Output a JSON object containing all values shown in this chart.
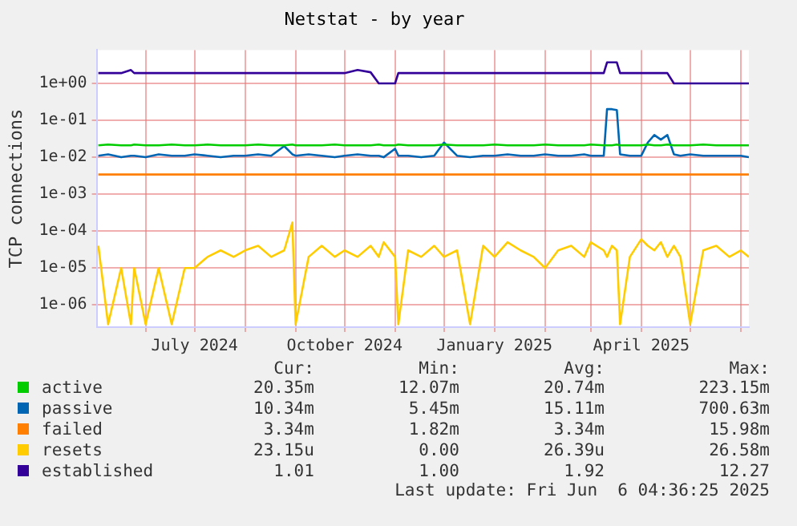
{
  "chart_data": {
    "type": "line",
    "title": "Netstat - by year",
    "ylabel": "TCP connections",
    "log": "y",
    "grid": true,
    "legend": "bottom",
    "marker": "none",
    "line_style": "solid",
    "x": [
      "2024-05-03",
      "2024-05-09",
      "2024-05-17",
      "2024-05-23",
      "2024-05-25",
      "2024-06-01",
      "2024-06-09",
      "2024-06-17",
      "2024-06-25",
      "2024-07-01",
      "2024-07-09",
      "2024-07-17",
      "2024-07-25",
      "2024-08-01",
      "2024-08-09",
      "2024-08-17",
      "2024-08-25",
      "2024-08-30",
      "2024-09-01",
      "2024-09-09",
      "2024-09-17",
      "2024-09-25",
      "2024-10-01",
      "2024-10-09",
      "2024-10-17",
      "2024-10-22",
      "2024-10-25",
      "2024-11-01",
      "2024-11-03",
      "2024-11-09",
      "2024-11-17",
      "2024-11-25",
      "2024-12-01",
      "2024-12-09",
      "2024-12-17",
      "2024-12-25",
      "2025-01-01",
      "2025-01-09",
      "2025-01-17",
      "2025-01-25",
      "2025-02-01",
      "2025-02-09",
      "2025-02-17",
      "2025-02-25",
      "2025-03-01",
      "2025-03-09",
      "2025-03-11",
      "2025-03-14",
      "2025-03-17",
      "2025-03-19",
      "2025-03-25",
      "2025-04-01",
      "2025-04-05",
      "2025-04-09",
      "2025-04-13",
      "2025-04-17",
      "2025-04-21",
      "2025-04-25",
      "2025-05-01",
      "2025-05-09",
      "2025-05-17",
      "2025-05-25",
      "2025-06-01",
      "2025-06-06"
    ],
    "xlim": [
      "2024-05-02",
      "2025-06-06"
    ],
    "xticks": [
      {
        "value": "2024-06-01",
        "label": null
      },
      {
        "value": "2024-07-01",
        "label": "July 2024"
      },
      {
        "value": "2024-08-01",
        "label": null
      },
      {
        "value": "2024-09-01",
        "label": null
      },
      {
        "value": "2024-10-01",
        "label": "October 2024"
      },
      {
        "value": "2024-11-01",
        "label": null
      },
      {
        "value": "2024-12-01",
        "label": null
      },
      {
        "value": "2025-01-01",
        "label": "January 2025"
      },
      {
        "value": "2025-02-01",
        "label": null
      },
      {
        "value": "2025-03-01",
        "label": null
      },
      {
        "value": "2025-04-01",
        "label": "April 2025"
      },
      {
        "value": "2025-05-01",
        "label": null
      },
      {
        "value": "2025-06-01",
        "label": null
      }
    ],
    "ylim": [
      2.5e-07,
      8
    ],
    "yticks": [
      {
        "value": 1e-06,
        "label": "1e-06"
      },
      {
        "value": 1e-05,
        "label": "1e-05"
      },
      {
        "value": 0.0001,
        "label": "1e-04"
      },
      {
        "value": 0.001,
        "label": "1e-03"
      },
      {
        "value": 0.01,
        "label": "1e-02"
      },
      {
        "value": 0.1,
        "label": "1e-01"
      },
      {
        "value": 1,
        "label": "1e+00"
      }
    ],
    "series": [
      {
        "name": "active",
        "color": "#00cc00",
        "values": [
          0.021,
          0.022,
          0.021,
          0.021,
          0.022,
          0.021,
          0.021,
          0.022,
          0.021,
          0.021,
          0.022,
          0.021,
          0.021,
          0.021,
          0.022,
          0.021,
          0.021,
          0.022,
          0.021,
          0.021,
          0.021,
          0.022,
          0.021,
          0.021,
          0.021,
          0.022,
          0.021,
          0.021,
          0.022,
          0.021,
          0.021,
          0.021,
          0.022,
          0.021,
          0.021,
          0.021,
          0.022,
          0.021,
          0.021,
          0.021,
          0.022,
          0.021,
          0.021,
          0.021,
          0.022,
          0.021,
          0.021,
          0.021,
          0.022,
          0.021,
          0.021,
          0.021,
          0.022,
          0.021,
          0.021,
          0.022,
          0.021,
          0.021,
          0.021,
          0.022,
          0.021,
          0.021,
          0.021,
          0.021
        ]
      },
      {
        "name": "passive",
        "color": "#0066b3",
        "values": [
          0.011,
          0.012,
          0.01,
          0.011,
          0.011,
          0.01,
          0.012,
          0.011,
          0.011,
          0.012,
          0.011,
          0.01,
          0.011,
          0.011,
          0.012,
          0.011,
          0.02,
          0.012,
          0.011,
          0.012,
          0.011,
          0.01,
          0.011,
          0.012,
          0.011,
          0.011,
          0.01,
          0.017,
          0.011,
          0.011,
          0.01,
          0.011,
          0.025,
          0.011,
          0.01,
          0.011,
          0.011,
          0.012,
          0.011,
          0.011,
          0.012,
          0.011,
          0.011,
          0.012,
          0.011,
          0.011,
          0.2,
          0.2,
          0.19,
          0.012,
          0.011,
          0.011,
          0.025,
          0.04,
          0.03,
          0.04,
          0.012,
          0.011,
          0.012,
          0.011,
          0.011,
          0.011,
          0.011,
          0.01
        ]
      },
      {
        "name": "failed",
        "color": "#ff8000",
        "values": [
          0.0034,
          0.0034,
          0.0034,
          0.0034,
          0.0034,
          0.0034,
          0.0034,
          0.0034,
          0.0034,
          0.0034,
          0.0034,
          0.0034,
          0.0034,
          0.0034,
          0.0034,
          0.0034,
          0.0034,
          0.0034,
          0.0034,
          0.0034,
          0.0034,
          0.0034,
          0.0034,
          0.0034,
          0.0034,
          0.0034,
          0.0034,
          0.0034,
          0.0034,
          0.0034,
          0.0034,
          0.0034,
          0.0034,
          0.0034,
          0.0034,
          0.0034,
          0.0034,
          0.0034,
          0.0034,
          0.0034,
          0.0034,
          0.0034,
          0.0034,
          0.0034,
          0.0034,
          0.0034,
          0.0034,
          0.0034,
          0.0034,
          0.0034,
          0.0034,
          0.0034,
          0.0034,
          0.0034,
          0.0034,
          0.0034,
          0.0034,
          0.0034,
          0.0034,
          0.0034,
          0.0034,
          0.0034,
          0.0034,
          0.0034
        ]
      },
      {
        "name": "resets",
        "color": "#ffcc00",
        "values": [
          4e-05,
          3e-07,
          1e-05,
          3e-07,
          1e-05,
          3e-07,
          1e-05,
          3e-07,
          1e-05,
          1e-05,
          2e-05,
          3e-05,
          2e-05,
          3e-05,
          4e-05,
          2e-05,
          3e-05,
          0.00017,
          3e-07,
          2e-05,
          4e-05,
          2e-05,
          3e-05,
          2e-05,
          4e-05,
          2e-05,
          5e-05,
          2e-05,
          3e-07,
          3e-05,
          2e-05,
          4e-05,
          2e-05,
          3e-05,
          3e-07,
          4e-05,
          2e-05,
          5e-05,
          3e-05,
          2e-05,
          1e-05,
          3e-05,
          4e-05,
          2e-05,
          5e-05,
          3e-05,
          2e-05,
          4e-05,
          3e-05,
          3e-07,
          2e-05,
          6e-05,
          4e-05,
          3e-05,
          5e-05,
          2e-05,
          4e-05,
          2e-05,
          3e-07,
          3e-05,
          4e-05,
          2e-05,
          3e-05,
          2e-05
        ]
      },
      {
        "name": "established",
        "color": "#330099",
        "values": [
          1.9,
          1.9,
          1.9,
          2.3,
          1.9,
          1.9,
          1.9,
          1.9,
          1.9,
          1.9,
          1.9,
          1.9,
          1.9,
          1.9,
          1.9,
          1.9,
          1.9,
          1.9,
          1.9,
          1.9,
          1.9,
          1.9,
          1.9,
          2.3,
          2.0,
          1.0,
          1.0,
          1.0,
          1.9,
          1.9,
          1.9,
          1.9,
          1.9,
          1.9,
          1.9,
          1.9,
          1.9,
          1.9,
          1.9,
          1.9,
          1.9,
          1.9,
          1.9,
          1.9,
          1.9,
          1.9,
          3.7,
          3.7,
          3.7,
          1.9,
          1.9,
          1.9,
          1.9,
          1.9,
          1.9,
          1.9,
          1.0,
          1.0,
          1.0,
          1.0,
          1.0,
          1.0,
          1.0,
          1.0
        ]
      }
    ],
    "annotations": [
      "Cur:",
      "Min:",
      "Avg:",
      "Max:",
      "20.35m",
      "12.07m",
      "20.74m",
      "223.15m",
      "10.34m",
      "5.45m",
      "15.11m",
      "700.63m",
      "3.34m",
      "1.82m",
      "3.34m",
      "15.98m",
      "23.15u",
      "0.00",
      "26.39u",
      "26.58m",
      "1.01",
      "1.00",
      "1.92",
      "12.27",
      "Last update: Fri Jun  6 04:36:25 2025"
    ]
  }
}
